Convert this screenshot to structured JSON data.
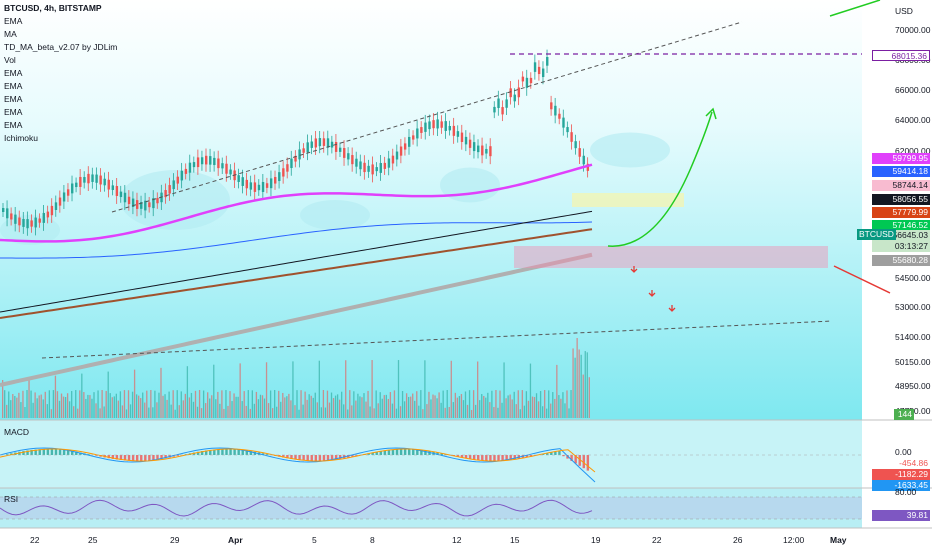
{
  "legend": {
    "title": "BTCUSD, 4h, BITSTAMP",
    "items": [
      "EMA",
      "MA",
      "TD_MA_beta_v2.07 by JDLim",
      "Vol",
      "EMA",
      "EMA",
      "EMA",
      "EMA",
      "EMA",
      "Ichimoku"
    ]
  },
  "axis": {
    "currency": "USD",
    "price_ticks": [
      "70000.00",
      "68000.00",
      "66000.00",
      "64000.00",
      "62000.00",
      "54500.00",
      "53000.00",
      "51400.00",
      "50150.00",
      "48950.00",
      "47750.00"
    ],
    "time_ticks": [
      "22",
      "25",
      "29",
      "Apr",
      "5",
      "8",
      "12",
      "15",
      "19",
      "22",
      "26",
      "12:00",
      "May"
    ]
  },
  "price_tags": [
    {
      "label": "68015.36",
      "bg": "#ffffff",
      "fg": "#7b1fa2",
      "border": "#7b1fa2"
    },
    {
      "label": "59799.95",
      "bg": "#e040fb",
      "fg": "#ffffff"
    },
    {
      "label": "59414.18",
      "bg": "#2962ff",
      "fg": "#ffffff"
    },
    {
      "label": "58744.14",
      "bg": "#f8bbd0",
      "fg": "#131722"
    },
    {
      "label": "58056.55",
      "bg": "#131722",
      "fg": "#ffffff"
    },
    {
      "label": "57779.99",
      "bg": "#d84315",
      "fg": "#ffffff"
    },
    {
      "label": "57146.52",
      "bg": "#00c853",
      "fg": "#ffffff"
    },
    {
      "label": "56645.03",
      "bg": "#c8e6c9",
      "fg": "#131722"
    },
    {
      "label": "03:13:27",
      "bg": "#c8e6c9",
      "fg": "#131722"
    },
    {
      "label": "55680.28",
      "bg": "#9e9e9e",
      "fg": "#ffffff"
    },
    {
      "label": "144",
      "bg": "#4caf50",
      "fg": "#ffffff"
    }
  ],
  "symbol_label": "BTCUSD",
  "macd": {
    "label": "MACD",
    "ticks": [
      "0.00"
    ],
    "tags": [
      {
        "label": "-454.86",
        "bg": "#ffffff",
        "fg": "#ef5350"
      },
      {
        "label": "-1182.29",
        "bg": "#ef5350",
        "fg": "#ffffff"
      },
      {
        "label": "-1633.45",
        "bg": "#2196f3",
        "fg": "#ffffff"
      }
    ]
  },
  "rsi": {
    "label": "RSI",
    "ticks": [
      "80.00"
    ],
    "tag": {
      "label": "39.81",
      "bg": "#7e57c2",
      "fg": "#ffffff"
    }
  },
  "colors": {
    "up": "#26a69a",
    "down": "#ef5350",
    "cloud": "#b2ebf2",
    "ma_pink": "#e040fb",
    "ema_blue": "#2962ff",
    "ma_black": "#131722",
    "ma_brown": "#a0522d",
    "ma_gray": "#b0b0b0"
  }
}
